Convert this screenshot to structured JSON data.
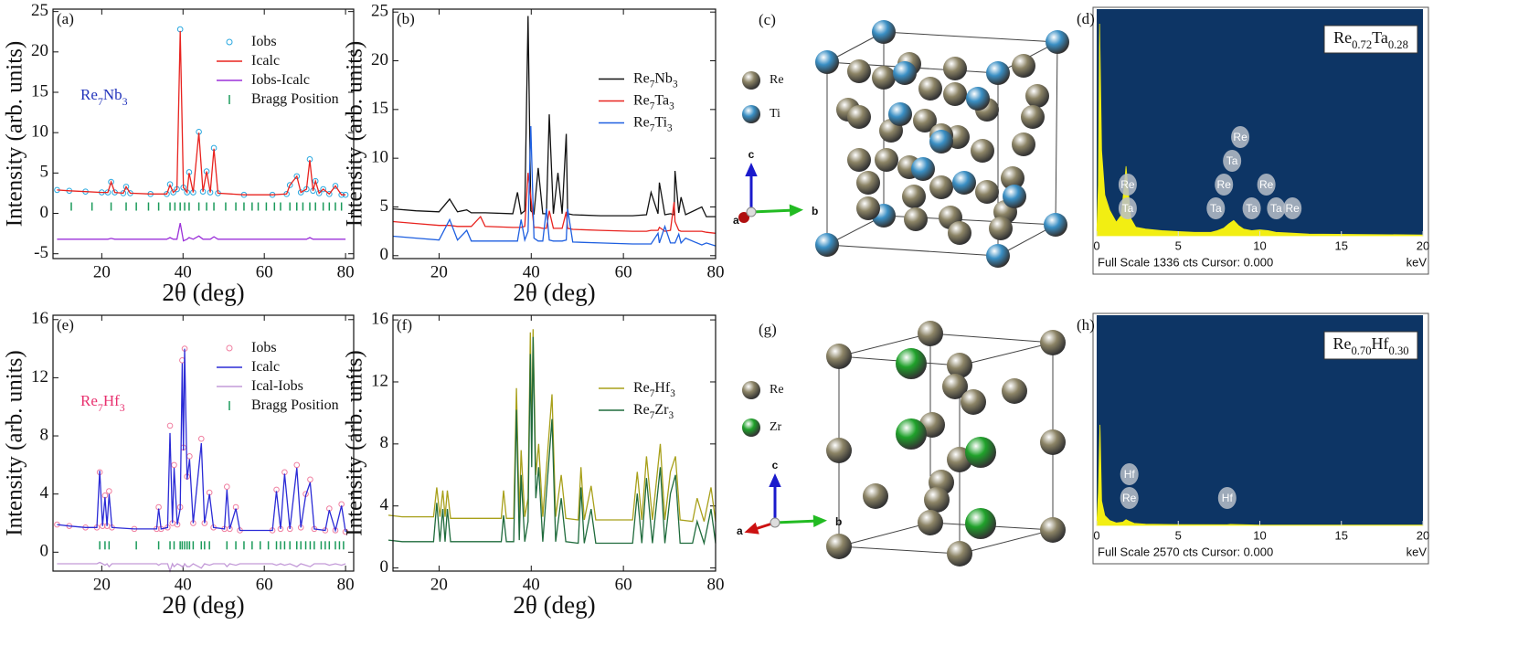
{
  "chart_data": [
    {
      "type": "line",
      "label": "(a)",
      "annotation": {
        "text": "Re7Nb3",
        "color": "#2233bb"
      },
      "xlabel": "2θ (deg)",
      "ylabel": "Intensity (arb. units)",
      "xlim": [
        8,
        82
      ],
      "xticks": [
        20,
        40,
        60,
        80
      ],
      "ylim": [
        -5.6,
        25.3
      ],
      "yticks": [
        -5,
        0,
        5,
        10,
        15,
        20,
        25
      ],
      "legend": "upper right",
      "x": [
        9,
        12,
        16,
        20,
        21.5,
        22.3,
        23.2,
        25.3,
        26,
        27,
        32,
        36,
        36.8,
        37.6,
        38.5,
        39.3,
        40.1,
        41,
        41.5,
        42.5,
        43.9,
        44.9,
        45.8,
        46.7,
        47.6,
        48.6,
        55,
        62,
        65.5,
        66.3,
        68,
        69,
        70.4,
        71.2,
        72,
        72.6,
        73.5,
        74.5,
        76,
        77.5,
        79,
        80
      ],
      "series": [
        {
          "name": "Iobs",
          "mode": "markers",
          "color": "#29a8e0",
          "values": [
            2.9,
            2.8,
            2.7,
            2.6,
            2.6,
            3.9,
            2.6,
            2.5,
            3.3,
            2.5,
            2.4,
            2.4,
            3.6,
            2.6,
            3.0,
            22.8,
            3.2,
            2.6,
            5.1,
            2.6,
            10.1,
            2.7,
            5.2,
            2.6,
            8.1,
            2.5,
            2.3,
            2.3,
            2.4,
            3.5,
            4.6,
            2.6,
            3.0,
            6.7,
            2.8,
            4.0,
            2.5,
            3.0,
            2.4,
            3.4,
            2.3,
            2.3
          ]
        },
        {
          "name": "Icalc",
          "mode": "line",
          "color": "#e8231f",
          "values": [
            2.9,
            2.8,
            2.7,
            2.6,
            2.6,
            3.9,
            2.6,
            2.5,
            3.3,
            2.5,
            2.4,
            2.4,
            3.5,
            2.6,
            3.0,
            22.6,
            3.2,
            2.6,
            5.0,
            2.6,
            10.0,
            2.7,
            5.2,
            2.6,
            8.0,
            2.5,
            2.3,
            2.3,
            2.4,
            3.5,
            4.6,
            2.6,
            3.0,
            6.6,
            2.8,
            4.0,
            2.5,
            3.0,
            2.4,
            3.4,
            2.3,
            2.3
          ]
        },
        {
          "name": "Iobs-Icalc",
          "mode": "line",
          "color": "#9b30d9",
          "values": [
            -3.2,
            -3.2,
            -3.2,
            -3.2,
            -3.2,
            -3.1,
            -3.2,
            -3.2,
            -3.2,
            -3.2,
            -3.2,
            -3.2,
            -3.0,
            -3.2,
            -3.2,
            -1.2,
            -3.4,
            -3.2,
            -3.0,
            -3.2,
            -2.8,
            -3.2,
            -3.2,
            -3.2,
            -2.9,
            -3.2,
            -3.2,
            -3.2,
            -3.2,
            -3.2,
            -3.2,
            -3.2,
            -3.2,
            -3.0,
            -3.2,
            -3.2,
            -3.2,
            -3.2,
            -3.2,
            -3.2,
            -3.2,
            -3.2
          ]
        },
        {
          "name": "Bragg Position",
          "mode": "ticks",
          "color": "#1a9a5a",
          "x": [
            12.5,
            17.6,
            22.3,
            26,
            28.5,
            31.5,
            34,
            36.8,
            38,
            39.3,
            40.4,
            41.5,
            43.9,
            45.8,
            47.6,
            50.5,
            53,
            55,
            57,
            58.5,
            60.5,
            62.5,
            64,
            66.3,
            68,
            69.5,
            71.2,
            72.6,
            74.5,
            76,
            77.5,
            79
          ]
        }
      ]
    },
    {
      "type": "line",
      "label": "(b)",
      "xlabel": "2θ (deg)",
      "ylabel": "Intensity (arb. units)",
      "xlim": [
        10,
        80
      ],
      "xticks": [
        20,
        40,
        60,
        80
      ],
      "ylim": [
        -0.3,
        25.3
      ],
      "yticks": [
        0,
        5,
        10,
        15,
        20,
        25
      ],
      "legend": "center right",
      "x": [
        10,
        15,
        20,
        22.3,
        24,
        26,
        27,
        29,
        30,
        36,
        37,
        37.8,
        38.6,
        39.3,
        39.9,
        40.6,
        41.5,
        42.5,
        43.3,
        43.9,
        44.8,
        45.8,
        46.7,
        47.6,
        47.9,
        49,
        55,
        62,
        65,
        66,
        67.5,
        67.8,
        69,
        70.2,
        71,
        71.2,
        72,
        72.5,
        73.5,
        77,
        78,
        80
      ],
      "series": [
        {
          "name": "Re7Nb3",
          "mode": "line",
          "color": "#111111",
          "values": [
            4.8,
            4.6,
            4.5,
            5.8,
            4.5,
            4.7,
            4.4,
            4.4,
            4.4,
            4.3,
            6.5,
            4.3,
            4.6,
            24.6,
            4.6,
            4.3,
            9.0,
            4.3,
            4.3,
            14.5,
            4.3,
            8.5,
            4.3,
            12.5,
            4.3,
            4.2,
            4.1,
            4.1,
            4.2,
            6.5,
            4.3,
            7.5,
            4.2,
            4.3,
            4.2,
            8.7,
            4.4,
            6.0,
            4.2,
            5.0,
            4.0,
            4.0
          ]
        },
        {
          "name": "Re7Ta3",
          "mode": "line",
          "color": "#e8231f",
          "values": [
            3.5,
            3.3,
            3.1,
            3.1,
            3.0,
            3.0,
            3.0,
            4.0,
            3.0,
            2.9,
            2.9,
            2.9,
            3.0,
            8.5,
            6.0,
            2.9,
            2.9,
            2.8,
            2.8,
            4.6,
            2.8,
            2.8,
            2.8,
            4.5,
            2.8,
            2.7,
            2.6,
            2.5,
            2.5,
            2.6,
            2.6,
            2.9,
            2.5,
            2.6,
            5.5,
            3.5,
            2.6,
            2.5,
            2.5,
            2.5,
            2.4,
            2.3
          ]
        },
        {
          "name": "Re7Ti3",
          "mode": "line",
          "color": "#1e5fe0",
          "values": [
            2.0,
            1.8,
            1.6,
            3.7,
            1.6,
            2.6,
            1.5,
            1.5,
            1.5,
            1.5,
            1.5,
            3.7,
            1.6,
            2.5,
            13.3,
            1.8,
            1.5,
            1.5,
            4.8,
            1.6,
            1.5,
            1.5,
            1.5,
            1.6,
            4.8,
            1.4,
            1.3,
            1.2,
            1.2,
            1.2,
            2.3,
            1.3,
            3.0,
            1.3,
            1.3,
            1.3,
            2.2,
            1.3,
            1.8,
            1.1,
            1.3,
            1.0
          ]
        }
      ]
    },
    {
      "type": "eds",
      "label": "(d)",
      "title": "Re0.72Ta0.28",
      "footer": "Full Scale 1336 cts Cursor: 0.000",
      "xlabel": "keV",
      "background": "#0d3565",
      "color": "#f2ee12",
      "xlim": [
        0,
        20
      ],
      "xticks": [
        0,
        5,
        10,
        15,
        20
      ],
      "ylim": [
        0,
        1336
      ],
      "x": [
        0,
        0.1,
        0.18,
        0.3,
        0.5,
        0.8,
        1.2,
        1.5,
        1.7,
        1.8,
        1.9,
        2.1,
        2.4,
        3,
        4,
        5,
        6,
        7,
        7.4,
        7.8,
        8.1,
        8.4,
        8.7,
        9,
        9.5,
        10,
        10.5,
        11,
        12,
        13,
        20
      ],
      "values": [
        0,
        300,
        1250,
        500,
        240,
        150,
        80,
        120,
        300,
        410,
        300,
        100,
        50,
        40,
        30,
        25,
        20,
        20,
        30,
        45,
        70,
        90,
        60,
        40,
        30,
        35,
        30,
        20,
        15,
        10,
        5
      ],
      "annotations": [
        {
          "text": "Ta",
          "x": 1.9
        },
        {
          "text": "Re",
          "x": 1.9
        },
        {
          "text": "Ta",
          "x": 7.3
        },
        {
          "text": "Re",
          "x": 7.8
        },
        {
          "text": "Ta",
          "x": 8.3
        },
        {
          "text": "Re",
          "x": 8.8
        },
        {
          "text": "Ta",
          "x": 9.5
        },
        {
          "text": "Ta",
          "x": 11.0
        },
        {
          "text": "Re",
          "x": 10.4
        },
        {
          "text": "Re",
          "x": 12.0
        }
      ]
    },
    {
      "type": "line",
      "label": "(e)",
      "annotation": {
        "text": "Re7Hf3",
        "color": "#e8306e"
      },
      "xlabel": "2θ (deg)",
      "ylabel": "Intensity (arb. units)",
      "xlim": [
        8,
        82
      ],
      "xticks": [
        20,
        40,
        60,
        80
      ],
      "ylim": [
        -1.3,
        16.3
      ],
      "yticks": [
        0,
        4,
        8,
        12,
        16
      ],
      "legend": "upper right",
      "x": [
        9,
        12,
        16,
        18.8,
        19.5,
        20.2,
        20.8,
        21.3,
        21.8,
        22.5,
        28,
        33.5,
        34,
        34.6,
        36.2,
        36.8,
        37.4,
        37.8,
        38.6,
        39.3,
        39.8,
        40.1,
        40.4,
        41,
        41.6,
        42.5,
        44.5,
        45.3,
        46.5,
        47.5,
        50.2,
        50.8,
        51.5,
        53,
        54,
        62,
        63,
        64,
        65,
        66.3,
        68,
        69,
        70.2,
        71.3,
        72.3,
        75,
        76,
        77.5,
        79,
        80
      ],
      "series": [
        {
          "name": "Iobs",
          "mode": "markers",
          "color": "#f07fa0",
          "values": [
            1.9,
            1.8,
            1.7,
            1.7,
            5.5,
            1.8,
            3.9,
            1.8,
            4.2,
            1.7,
            1.6,
            1.6,
            3.1,
            1.6,
            1.7,
            8.7,
            2.0,
            6.0,
            1.9,
            3.1,
            13.2,
            7.2,
            14.0,
            5.2,
            6.6,
            2.0,
            7.8,
            2.0,
            4.1,
            1.7,
            1.6,
            4.5,
            1.6,
            3.1,
            1.5,
            1.5,
            4.3,
            1.6,
            5.5,
            1.6,
            6.0,
            1.7,
            4.0,
            5.0,
            1.6,
            1.5,
            3.0,
            1.5,
            3.3,
            1.4
          ]
        },
        {
          "name": "Icalc",
          "mode": "line",
          "color": "#2b2bd6",
          "values": [
            1.9,
            1.8,
            1.7,
            1.7,
            5.6,
            1.8,
            3.8,
            1.8,
            4.0,
            1.7,
            1.6,
            1.6,
            3.0,
            1.6,
            1.7,
            8.2,
            2.0,
            5.8,
            1.9,
            3.0,
            13.0,
            7.0,
            14.0,
            5.0,
            6.4,
            2.0,
            7.5,
            2.0,
            4.0,
            1.7,
            1.6,
            4.3,
            1.6,
            3.0,
            1.5,
            1.5,
            4.2,
            1.6,
            5.4,
            1.6,
            5.8,
            1.7,
            3.9,
            4.8,
            1.6,
            1.5,
            2.9,
            1.5,
            3.2,
            1.4
          ]
        },
        {
          "name": "Ical-Iobs",
          "mode": "line",
          "color": "#c39ad8",
          "values": [
            -0.8,
            -0.8,
            -0.8,
            -0.8,
            -0.7,
            -0.8,
            -0.9,
            -0.8,
            -1.0,
            -0.8,
            -0.8,
            -0.8,
            -0.9,
            -0.8,
            -0.8,
            -1.3,
            -0.8,
            -1.0,
            -0.8,
            -0.9,
            -1.0,
            -1.0,
            -0.8,
            -1.0,
            -1.0,
            -0.8,
            -1.1,
            -0.8,
            -0.9,
            -0.8,
            -0.8,
            -1.0,
            -0.8,
            -0.9,
            -0.8,
            -0.8,
            -0.9,
            -0.8,
            -0.9,
            -0.8,
            -1.0,
            -0.8,
            -0.9,
            -1.0,
            -0.8,
            -0.8,
            -0.9,
            -0.8,
            -0.9,
            -0.8
          ]
        },
        {
          "name": "Bragg Position",
          "mode": "ticks",
          "color": "#1a9a5a",
          "x": [
            19.5,
            20.8,
            21.8,
            28.5,
            34,
            36.8,
            37.8,
            39.3,
            39.8,
            40.4,
            41,
            41.6,
            42.5,
            44.5,
            45.3,
            46.5,
            50.8,
            53,
            55,
            57,
            59,
            61,
            63,
            64,
            65,
            66.3,
            68,
            69,
            70.2,
            71.3,
            72.3,
            74,
            75,
            76,
            77.5,
            78.5,
            79.5
          ]
        }
      ]
    },
    {
      "type": "line",
      "label": "(f)",
      "xlabel": "2θ (deg)",
      "ylabel": "Intensity (arb. units)",
      "xlim": [
        10,
        80
      ],
      "xticks": [
        20,
        40,
        60,
        80
      ],
      "ylim": [
        -0.2,
        16.3
      ],
      "yticks": [
        0,
        4,
        8,
        12,
        16
      ],
      "legend": "center right",
      "x": [
        9,
        12,
        16,
        18.8,
        19.5,
        20.2,
        20.8,
        21.3,
        21.8,
        22.5,
        28,
        33.5,
        34,
        34.6,
        36.2,
        36.8,
        37.4,
        37.8,
        38.6,
        39.3,
        39.8,
        40.1,
        40.4,
        41,
        41.6,
        42.5,
        44.5,
        45.3,
        46.5,
        47.5,
        50.2,
        50.8,
        51.5,
        53,
        54,
        62,
        63,
        64,
        65,
        66.3,
        68,
        69,
        70.2,
        71.3,
        72.3,
        75,
        76,
        77.5,
        79,
        80
      ],
      "series": [
        {
          "name": "Re7Hf3",
          "mode": "line",
          "color": "#a8a01a",
          "values": [
            3.4,
            3.3,
            3.3,
            3.3,
            5.2,
            3.3,
            5.0,
            3.3,
            5.0,
            3.2,
            3.2,
            3.2,
            5.0,
            3.2,
            3.2,
            11.6,
            3.3,
            7.6,
            3.3,
            4.5,
            15.2,
            8.0,
            15.4,
            6.0,
            8.0,
            3.3,
            11.2,
            3.3,
            6.0,
            3.2,
            3.1,
            6.5,
            3.1,
            5.3,
            3.1,
            3.1,
            6.2,
            3.1,
            7.2,
            3.1,
            8.0,
            3.1,
            6.2,
            7.2,
            3.1,
            3.0,
            4.5,
            3.0,
            5.2,
            3.0
          ]
        },
        {
          "name": "Re7Zr3",
          "mode": "line",
          "color": "#1f6b3c",
          "values": [
            1.8,
            1.7,
            1.7,
            1.7,
            4.2,
            1.7,
            3.8,
            1.7,
            3.8,
            1.7,
            1.7,
            1.7,
            3.4,
            1.7,
            1.7,
            10.2,
            1.8,
            6.0,
            1.7,
            3.0,
            13.8,
            6.5,
            14.9,
            4.5,
            6.5,
            1.7,
            9.6,
            1.7,
            4.5,
            1.7,
            1.6,
            5.2,
            1.6,
            3.8,
            1.6,
            1.6,
            4.8,
            1.6,
            5.8,
            1.6,
            6.5,
            1.6,
            4.8,
            6.0,
            1.6,
            1.6,
            3.0,
            1.6,
            3.8,
            1.6
          ]
        }
      ]
    },
    {
      "type": "eds",
      "label": "(h)",
      "title": "Re0.70Hf0.30",
      "footer": "Full Scale 2570 cts Cursor: 0.000",
      "xlabel": "keV",
      "background": "#0d3565",
      "color": "#f2ee12",
      "xlim": [
        0,
        20
      ],
      "xticks": [
        0,
        5,
        10,
        15,
        20
      ],
      "ylim": [
        0,
        2570
      ],
      "x": [
        0,
        0.1,
        0.2,
        0.3,
        0.5,
        0.8,
        1.2,
        1.6,
        1.8,
        2.0,
        2.3,
        3,
        5,
        8,
        8.2,
        10,
        20
      ],
      "values": [
        0,
        400,
        1230,
        300,
        120,
        60,
        30,
        40,
        70,
        50,
        25,
        15,
        10,
        8,
        12,
        5,
        3
      ],
      "annotations": [
        {
          "text": "Re",
          "x": 2.0
        },
        {
          "text": "Hf",
          "x": 2.0
        },
        {
          "text": "Hf",
          "x": 8.0
        }
      ]
    }
  ],
  "diagrams": [
    {
      "label": "(c)",
      "legend": [
        {
          "name": "Re",
          "color": "#8c8466"
        },
        {
          "name": "Ti",
          "color": "#3a8fc4"
        }
      ],
      "axes": {
        "c": "c",
        "a": "a",
        "b": "b"
      }
    },
    {
      "label": "(g)",
      "legend": [
        {
          "name": "Re",
          "color": "#8c8466"
        },
        {
          "name": "Zr",
          "color": "#1fa12a"
        }
      ],
      "axes": {
        "c": "c",
        "a": "a",
        "b": "b"
      }
    }
  ]
}
